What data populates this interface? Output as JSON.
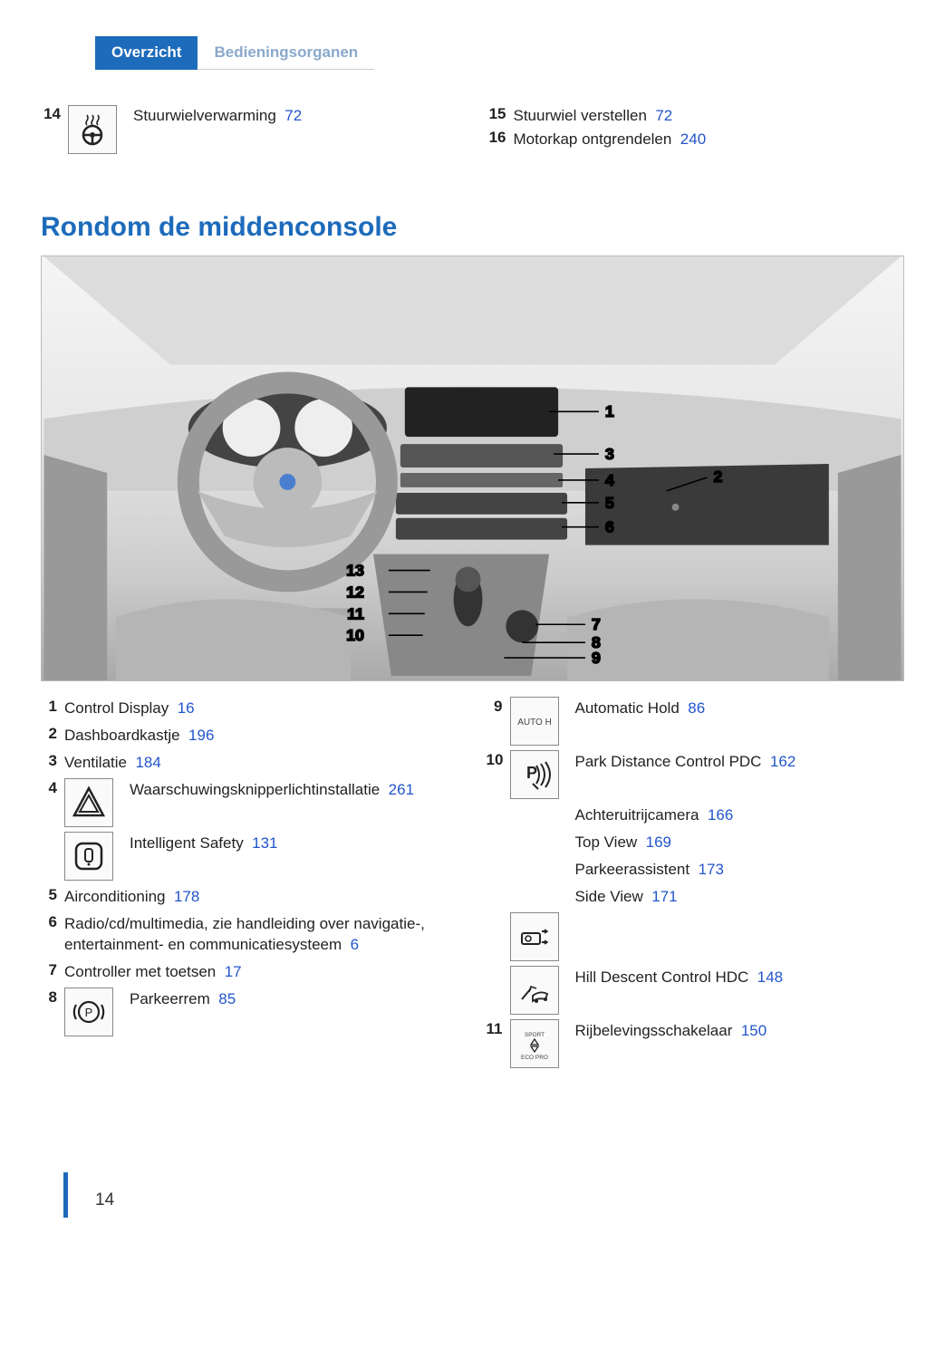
{
  "tabs": {
    "active": "Overzicht",
    "inactive": "Bedieningsorganen"
  },
  "top_left": {
    "num": "14",
    "icon": "steering-heat",
    "label": "Stuurwielverwarming",
    "page": "72"
  },
  "top_right_items": [
    {
      "num": "15",
      "label": "Stuurwiel verstellen",
      "page": "72"
    },
    {
      "num": "16",
      "label": "Motorkap ontgrendelen",
      "page": "240"
    }
  ],
  "section_title": "Rondom de middenconsole",
  "illustration": {
    "callouts": [
      "1",
      "2",
      "3",
      "4",
      "5",
      "6",
      "7",
      "8",
      "9",
      "10",
      "11",
      "12",
      "13"
    ],
    "colors": {
      "dash": "#c6c6c6",
      "dark": "#555",
      "line": "#222",
      "light": "#eee"
    }
  },
  "legend_left": [
    {
      "num": "1",
      "label": "Control Display",
      "page": "16"
    },
    {
      "num": "2",
      "label": "Dashboardkastje",
      "page": "196"
    },
    {
      "num": "3",
      "label": "Ventilatie",
      "page": "184"
    },
    {
      "num": "4",
      "icons": [
        {
          "name": "hazard-icon",
          "label": "Waarschuwingsknipperlichtin­stallatie",
          "page": "261"
        },
        {
          "name": "intelligent-safety-icon",
          "label": "Intelligent Safety",
          "page": "131"
        }
      ]
    },
    {
      "num": "5",
      "label": "Airconditioning",
      "page": "178"
    },
    {
      "num": "6",
      "label": "Radio/cd/multimedia, zie handleiding over navigatie-, entertainment- en communica­tiesysteem",
      "page": "6"
    },
    {
      "num": "7",
      "label": "Controller met toetsen",
      "page": "17"
    },
    {
      "num": "8",
      "icons": [
        {
          "name": "parking-brake-icon",
          "label": "Parkeerrem",
          "page": "85"
        }
      ]
    }
  ],
  "legend_right": [
    {
      "num": "9",
      "icons": [
        {
          "name": "auto-h-icon",
          "text": "AUTO H",
          "label": "Automatic Hold",
          "page": "86"
        }
      ]
    },
    {
      "num": "10",
      "icons": [
        {
          "name": "pdc-icon",
          "label": "Park Distance Control PDC",
          "page": "162",
          "extra_lines": [
            {
              "label": "Achteruitrijcamera",
              "page": "166"
            },
            {
              "label": "Top View",
              "page": "169"
            },
            {
              "label": "Parkeerassistent",
              "page": "173"
            },
            {
              "label": "Side View",
              "page": "171"
            }
          ]
        },
        {
          "name": "side-view-icon"
        },
        {
          "name": "hdc-icon",
          "label": "Hill Descent Control HDC",
          "page": "148"
        }
      ]
    },
    {
      "num": "11",
      "icons": [
        {
          "name": "drive-mode-icon",
          "text_top": "SPORT",
          "text_bot": "ECO PRO",
          "label": "Rijbelevingsschakelaar",
          "page": "150"
        }
      ]
    }
  ],
  "page_number": "14",
  "colors": {
    "brand": "#1d6bbb",
    "link": "#2255cc"
  }
}
